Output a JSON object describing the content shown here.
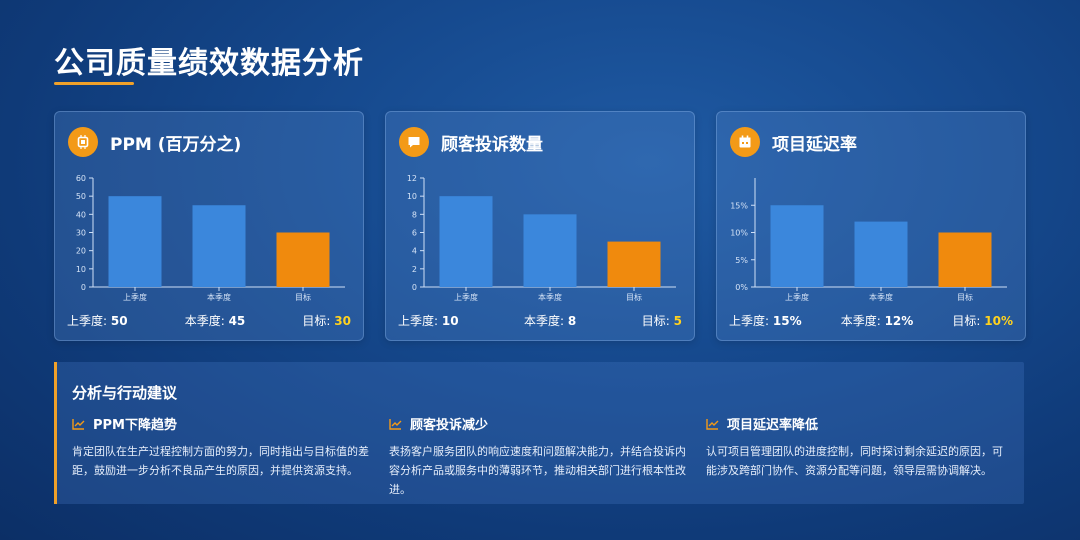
{
  "page": {
    "title": "公司质量绩效数据分析"
  },
  "colors": {
    "bar_blue": "#3b87dc",
    "bar_orange": "#f08a0d",
    "accent": "#f39a17",
    "highlight": "#ffd21f"
  },
  "cards": [
    {
      "title": "PPM (百万分之)",
      "icon": "chip-icon",
      "chart_data": {
        "type": "bar",
        "categories": [
          "上季度",
          "本季度",
          "目标"
        ],
        "values": [
          50,
          45,
          30
        ],
        "ylim": [
          0,
          60
        ],
        "yticks": [
          0,
          10,
          20,
          30,
          40,
          50,
          60
        ],
        "ytick_labels": [
          "0",
          "10",
          "20",
          "30",
          "40",
          "50",
          "60"
        ],
        "colors": [
          "#3b87dc",
          "#3b87dc",
          "#f08a0d"
        ]
      },
      "footer": {
        "last_label": "上季度:",
        "last_value": "50",
        "current_label": "本季度:",
        "current_value": "45",
        "target_label": "目标:",
        "target_value": "30"
      }
    },
    {
      "title": "顾客投诉数量",
      "icon": "message-icon",
      "chart_data": {
        "type": "bar",
        "categories": [
          "上季度",
          "本季度",
          "目标"
        ],
        "values": [
          10,
          8,
          5
        ],
        "ylim": [
          0,
          12
        ],
        "yticks": [
          0,
          2,
          4,
          6,
          8,
          10,
          12
        ],
        "ytick_labels": [
          "0",
          "2",
          "4",
          "6",
          "8",
          "10",
          "12"
        ],
        "colors": [
          "#3b87dc",
          "#3b87dc",
          "#f08a0d"
        ]
      },
      "footer": {
        "last_label": "上季度:",
        "last_value": "10",
        "current_label": "本季度:",
        "current_value": "8",
        "target_label": "目标:",
        "target_value": "5"
      }
    },
    {
      "title": "项目延迟率",
      "icon": "calendar-icon",
      "chart_data": {
        "type": "bar",
        "categories": [
          "上季度",
          "本季度",
          "目标"
        ],
        "values": [
          15,
          12,
          10
        ],
        "ylim": [
          0,
          20
        ],
        "yticks": [
          0,
          5,
          10,
          15
        ],
        "ytick_labels": [
          "0%",
          "5%",
          "10%",
          "15%"
        ],
        "colors": [
          "#3b87dc",
          "#3b87dc",
          "#f08a0d"
        ]
      },
      "footer": {
        "last_label": "上季度:",
        "last_value": "15%",
        "current_label": "本季度:",
        "current_value": "12%",
        "target_label": "目标:",
        "target_value": "10%"
      }
    }
  ],
  "advice": {
    "title": "分析与行动建议",
    "items": [
      {
        "heading": "PPM下降趋势",
        "text": "肯定团队在生产过程控制方面的努力，同时指出与目标值的差距，鼓励进一步分析不良品产生的原因，并提供资源支持。"
      },
      {
        "heading": "顾客投诉减少",
        "text": "表扬客户服务团队的响应速度和问题解决能力，并结合投诉内容分析产品或服务中的薄弱环节，推动相关部门进行根本性改进。"
      },
      {
        "heading": "项目延迟率降低",
        "text": "认可项目管理团队的进度控制，同时探讨剩余延迟的原因，可能涉及跨部门协作、资源分配等问题，领导层需协调解决。"
      }
    ]
  }
}
